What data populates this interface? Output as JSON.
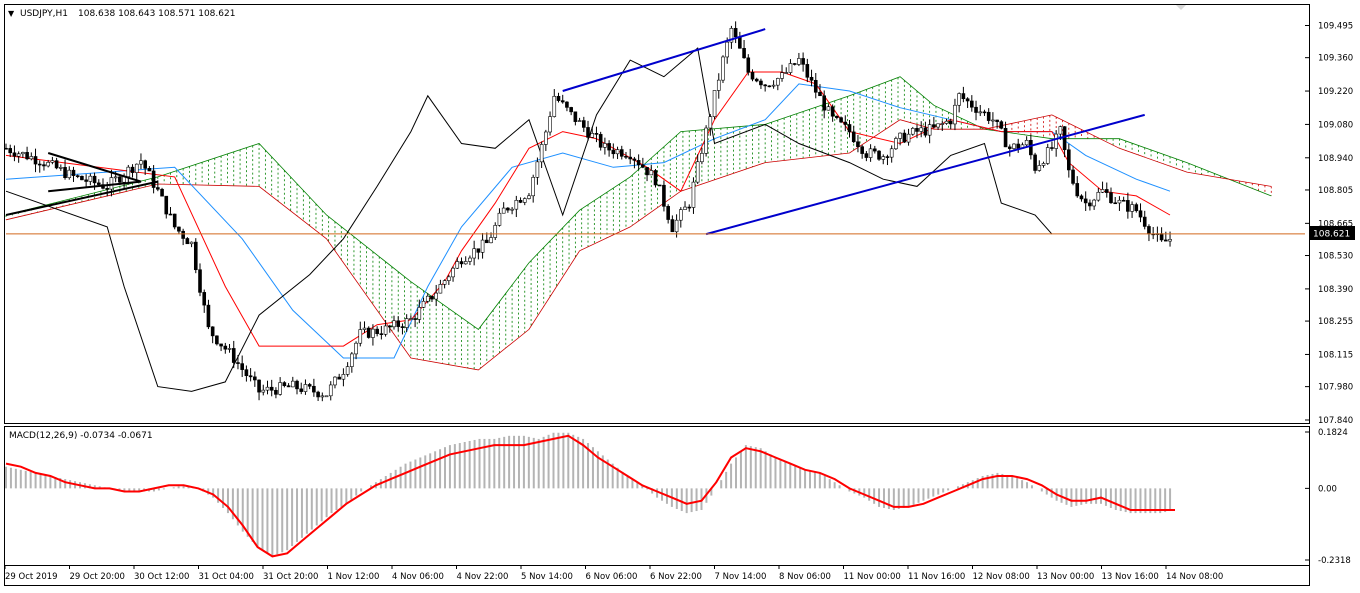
{
  "header": {
    "arrow": "▼",
    "symbol": "USDJPY,H1",
    "ohlc": "108.638 108.643 108.571 108.621"
  },
  "price_axis": {
    "ticks": [
      "109.495",
      "109.360",
      "109.220",
      "109.080",
      "108.940",
      "108.805",
      "108.665",
      "108.530",
      "108.390",
      "108.255",
      "108.115",
      "107.980",
      "107.840"
    ],
    "current_price": "108.621"
  },
  "macd": {
    "label": "MACD(12,26,9) -0.0734 -0.0671",
    "ticks": [
      "0.1824",
      "0.00",
      "-0.2318"
    ]
  },
  "time_axis": {
    "labels": [
      "29 Oct 2019",
      "29 Oct 20:00",
      "30 Oct 12:00",
      "31 Oct 04:00",
      "31 Oct 20:00",
      "1 Nov 12:00",
      "4 Nov 06:00",
      "4 Nov 22:00",
      "5 Nov 14:00",
      "6 Nov 06:00",
      "6 Nov 22:00",
      "7 Nov 14:00",
      "8 Nov 06:00",
      "11 Nov 00:00",
      "11 Nov 16:00",
      "12 Nov 08:00",
      "13 Nov 00:00",
      "13 Nov 16:00",
      "14 Nov 08:00"
    ]
  },
  "colors": {
    "candle": "#000000",
    "tenkan": "#ff0000",
    "kijun": "#1e90ff",
    "chikou": "#000000",
    "kumo_bull": "#008000",
    "kumo_bear": "#cc0000",
    "trendline": "#0000cc",
    "current_price_line": "#d2691e",
    "macd_hist": "#b4b4b4",
    "macd_signal": "#ff0000"
  },
  "chart_data": {
    "type": "candlestick",
    "symbol": "USDJPY",
    "timeframe": "H1",
    "last_close": 108.621,
    "y_range": [
      107.84,
      109.56
    ],
    "x_ticks": [
      "29 Oct 2019",
      "29 Oct 20:00",
      "30 Oct 12:00",
      "31 Oct 04:00",
      "31 Oct 20:00",
      "1 Nov 12:00",
      "4 Nov 06:00",
      "4 Nov 22:00",
      "5 Nov 14:00",
      "6 Nov 06:00",
      "6 Nov 22:00",
      "7 Nov 14:00",
      "8 Nov 06:00",
      "11 Nov 00:00",
      "11 Nov 16:00",
      "12 Nov 08:00",
      "13 Nov 00:00",
      "13 Nov 16:00",
      "14 Nov 08:00"
    ],
    "price_path": [
      [
        0,
        108.98
      ],
      [
        4,
        108.93
      ],
      [
        8,
        108.86
      ],
      [
        12,
        108.82
      ],
      [
        16,
        108.93
      ],
      [
        18,
        108.8
      ],
      [
        20,
        108.65
      ],
      [
        22,
        108.58
      ],
      [
        24,
        108.22
      ],
      [
        27,
        108.1
      ],
      [
        30,
        107.96
      ],
      [
        34,
        107.98
      ],
      [
        38,
        107.95
      ],
      [
        40,
        108.05
      ],
      [
        42,
        108.2
      ],
      [
        45,
        108.22
      ],
      [
        48,
        108.26
      ],
      [
        51,
        108.38
      ],
      [
        54,
        108.52
      ],
      [
        57,
        108.58
      ],
      [
        59,
        108.72
      ],
      [
        62,
        108.8
      ],
      [
        64,
        109.05
      ],
      [
        65,
        109.2
      ],
      [
        67,
        109.12
      ],
      [
        69,
        109.05
      ],
      [
        71,
        108.98
      ],
      [
        74,
        108.96
      ],
      [
        77,
        108.85
      ],
      [
        79,
        108.65
      ],
      [
        81,
        108.75
      ],
      [
        83,
        109.05
      ],
      [
        85,
        109.35
      ],
      [
        86,
        109.48
      ],
      [
        88,
        109.3
      ],
      [
        90,
        109.25
      ],
      [
        92,
        109.28
      ],
      [
        94,
        109.35
      ],
      [
        96,
        109.22
      ],
      [
        98,
        109.1
      ],
      [
        100,
        109.05
      ],
      [
        102,
        108.96
      ],
      [
        104,
        108.95
      ],
      [
        106,
        109.02
      ],
      [
        108,
        109.05
      ],
      [
        110,
        109.06
      ],
      [
        112,
        109.1
      ],
      [
        113,
        109.2
      ],
      [
        115,
        109.15
      ],
      [
        117,
        109.1
      ],
      [
        119,
        108.98
      ],
      [
        121,
        109.0
      ],
      [
        122,
        108.9
      ],
      [
        124,
        108.98
      ],
      [
        125,
        109.05
      ],
      [
        126,
        108.88
      ],
      [
        127,
        108.8
      ],
      [
        128,
        108.75
      ],
      [
        130,
        108.8
      ],
      [
        132,
        108.75
      ],
      [
        134,
        108.72
      ],
      [
        136,
        108.62
      ],
      [
        137,
        108.58
      ],
      [
        138,
        108.6
      ]
    ],
    "ichimoku": {
      "tenkan": [
        [
          0,
          108.95
        ],
        [
          20,
          108.86
        ],
        [
          26,
          108.4
        ],
        [
          30,
          108.15
        ],
        [
          40,
          108.15
        ],
        [
          44,
          108.24
        ],
        [
          48,
          108.26
        ],
        [
          52,
          108.42
        ],
        [
          54,
          108.55
        ],
        [
          58,
          108.75
        ],
        [
          62,
          108.98
        ],
        [
          66,
          109.05
        ],
        [
          70,
          109.02
        ],
        [
          76,
          108.9
        ],
        [
          80,
          108.8
        ],
        [
          84,
          109.1
        ],
        [
          88,
          109.3
        ],
        [
          92,
          109.3
        ],
        [
          96,
          109.25
        ],
        [
          100,
          109.05
        ],
        [
          106,
          109.0
        ],
        [
          112,
          109.1
        ],
        [
          118,
          109.05
        ],
        [
          124,
          109.05
        ],
        [
          126,
          108.92
        ],
        [
          130,
          108.8
        ],
        [
          134,
          108.78
        ],
        [
          138,
          108.7
        ]
      ],
      "kijun": [
        [
          0,
          108.85
        ],
        [
          20,
          108.9
        ],
        [
          28,
          108.6
        ],
        [
          34,
          108.3
        ],
        [
          40,
          108.1
        ],
        [
          46,
          108.1
        ],
        [
          50,
          108.4
        ],
        [
          54,
          108.65
        ],
        [
          60,
          108.9
        ],
        [
          66,
          108.96
        ],
        [
          72,
          108.9
        ],
        [
          78,
          108.92
        ],
        [
          84,
          109.02
        ],
        [
          90,
          109.1
        ],
        [
          94,
          109.25
        ],
        [
          100,
          109.22
        ],
        [
          106,
          109.15
        ],
        [
          112,
          109.1
        ],
        [
          118,
          109.05
        ],
        [
          124,
          109.05
        ],
        [
          128,
          108.95
        ],
        [
          134,
          108.85
        ],
        [
          138,
          108.8
        ]
      ],
      "kumo_a": [
        [
          0,
          108.7
        ],
        [
          18,
          108.86
        ],
        [
          30,
          109.0
        ],
        [
          38,
          108.7
        ],
        [
          48,
          108.42
        ],
        [
          56,
          108.22
        ],
        [
          62,
          108.5
        ],
        [
          68,
          108.72
        ],
        [
          74,
          108.86
        ],
        [
          80,
          109.05
        ],
        [
          90,
          109.08
        ],
        [
          100,
          109.2
        ],
        [
          106,
          109.28
        ],
        [
          110,
          109.16
        ],
        [
          116,
          109.06
        ],
        [
          124,
          109.02
        ],
        [
          132,
          109.02
        ],
        [
          140,
          108.92
        ],
        [
          150,
          108.78
        ]
      ],
      "kumo_b": [
        [
          0,
          108.68
        ],
        [
          18,
          108.83
        ],
        [
          30,
          108.82
        ],
        [
          38,
          108.6
        ],
        [
          48,
          108.1
        ],
        [
          56,
          108.05
        ],
        [
          62,
          108.22
        ],
        [
          68,
          108.55
        ],
        [
          74,
          108.65
        ],
        [
          80,
          108.8
        ],
        [
          90,
          108.92
        ],
        [
          100,
          108.96
        ],
        [
          106,
          109.1
        ],
        [
          110,
          109.06
        ],
        [
          116,
          109.06
        ],
        [
          124,
          109.12
        ],
        [
          132,
          108.98
        ],
        [
          140,
          108.88
        ],
        [
          150,
          108.82
        ]
      ],
      "chikou": [
        [
          0,
          108.8
        ],
        [
          12,
          108.65
        ],
        [
          14,
          108.4
        ],
        [
          18,
          107.98
        ],
        [
          22,
          107.96
        ],
        [
          26,
          108.0
        ],
        [
          30,
          108.28
        ],
        [
          36,
          108.45
        ],
        [
          40,
          108.6
        ],
        [
          44,
          108.82
        ],
        [
          48,
          109.05
        ],
        [
          50,
          109.2
        ],
        [
          54,
          109.0
        ],
        [
          58,
          108.98
        ],
        [
          62,
          109.1
        ],
        [
          66,
          108.7
        ],
        [
          70,
          109.12
        ],
        [
          74,
          109.35
        ],
        [
          78,
          109.28
        ],
        [
          82,
          109.4
        ],
        [
          84,
          109.0
        ],
        [
          90,
          109.08
        ],
        [
          94,
          109.0
        ],
        [
          100,
          108.92
        ],
        [
          104,
          108.85
        ],
        [
          108,
          108.82
        ],
        [
          112,
          108.95
        ],
        [
          116,
          109.0
        ],
        [
          118,
          108.75
        ],
        [
          122,
          108.7
        ],
        [
          124,
          108.62
        ]
      ]
    },
    "trendlines": [
      {
        "points": [
          [
            0,
            108.7
          ],
          [
            18,
            108.84
          ]
        ],
        "color": "#000000"
      },
      {
        "points": [
          [
            5,
            108.96
          ],
          [
            16,
            108.84
          ],
          [
            5,
            108.8
          ]
        ],
        "color": "#000000"
      },
      {
        "points": [
          [
            66,
            109.22
          ],
          [
            90,
            109.48
          ]
        ],
        "color": "#0000cc"
      },
      {
        "points": [
          [
            83,
            108.62
          ],
          [
            135,
            109.12
          ]
        ],
        "color": "#0000cc"
      }
    ],
    "macd_hist": [
      0.07,
      0.06,
      0.05,
      0.04,
      0.03,
      0.02,
      0.01,
      0.0,
      -0.01,
      -0.01,
      -0.01,
      0.0,
      0.01,
      0.0,
      -0.03,
      -0.08,
      -0.14,
      -0.19,
      -0.22,
      -0.2,
      -0.16,
      -0.12,
      -0.08,
      -0.05,
      -0.01,
      0.02,
      0.05,
      0.08,
      0.1,
      0.12,
      0.14,
      0.15,
      0.16,
      0.16,
      0.17,
      0.17,
      0.16,
      0.18,
      0.18,
      0.16,
      0.12,
      0.08,
      0.04,
      0.01,
      -0.03,
      -0.06,
      -0.08,
      -0.07,
      0.0,
      0.08,
      0.14,
      0.13,
      0.1,
      0.08,
      0.06,
      0.05,
      0.02,
      -0.01,
      -0.03,
      -0.06,
      -0.07,
      -0.06,
      -0.04,
      -0.02,
      0.0,
      0.02,
      0.04,
      0.05,
      0.04,
      0.02,
      -0.01,
      -0.04,
      -0.06,
      -0.05,
      -0.05,
      -0.07,
      -0.08,
      -0.08,
      -0.08,
      -0.07
    ],
    "macd_signal": [
      0.08,
      0.07,
      0.05,
      0.04,
      0.02,
      0.01,
      0.0,
      0.0,
      -0.01,
      -0.01,
      0.0,
      0.01,
      0.01,
      0.0,
      -0.02,
      -0.06,
      -0.12,
      -0.19,
      -0.22,
      -0.21,
      -0.17,
      -0.13,
      -0.09,
      -0.05,
      -0.02,
      0.01,
      0.03,
      0.05,
      0.07,
      0.09,
      0.11,
      0.12,
      0.13,
      0.14,
      0.14,
      0.14,
      0.15,
      0.16,
      0.17,
      0.14,
      0.1,
      0.07,
      0.04,
      0.01,
      -0.01,
      -0.03,
      -0.05,
      -0.04,
      0.02,
      0.1,
      0.13,
      0.12,
      0.1,
      0.08,
      0.06,
      0.05,
      0.03,
      0.0,
      -0.02,
      -0.04,
      -0.06,
      -0.06,
      -0.05,
      -0.03,
      -0.01,
      0.01,
      0.03,
      0.04,
      0.04,
      0.03,
      0.01,
      -0.02,
      -0.04,
      -0.04,
      -0.03,
      -0.05,
      -0.07,
      -0.07,
      -0.07,
      -0.07
    ],
    "macd_range": [
      -0.2318,
      0.1824
    ]
  }
}
